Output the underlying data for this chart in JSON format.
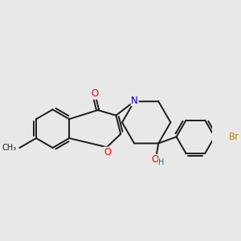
{
  "background_color": "#e8e8e8",
  "bond_color": "#1a1a1a",
  "atom_colors": {
    "O": "#ff0000",
    "N": "#0000cc",
    "H": "#008080",
    "Br": "#cc8800",
    "C": "#1a1a1a"
  },
  "lw": 1.4,
  "fs": 8.5
}
